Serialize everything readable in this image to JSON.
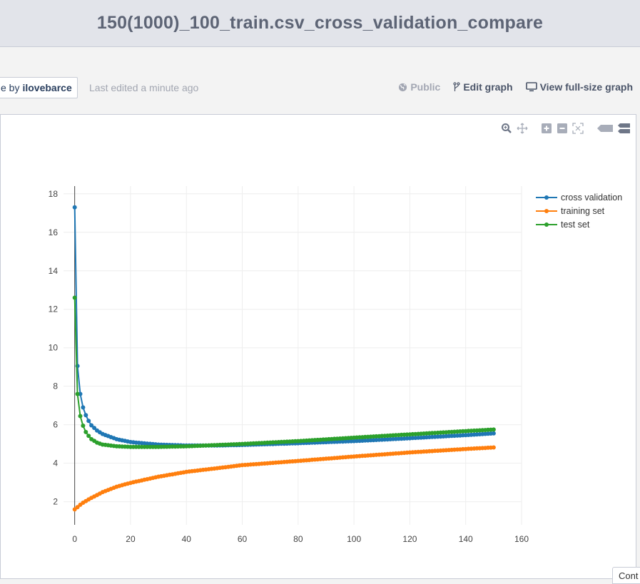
{
  "header": {
    "title": "150(1000)_100_train.csv_cross_validation_compare"
  },
  "toolbar": {
    "owner_prefix": "e by",
    "owner_name": "ilovebarce",
    "last_edited": "Last edited a minute ago",
    "public_label": "Public",
    "edit_label": "Edit graph",
    "view_label": "View full-size graph"
  },
  "modebar": {
    "buttons": [
      "zoom-icon",
      "pan-icon",
      "zoom-in-icon",
      "zoom-out-icon",
      "autoscale-icon",
      "hover-closest-icon",
      "hover-compare-icon"
    ]
  },
  "corner_tab": {
    "label": "Cont"
  },
  "chart_data": {
    "type": "line",
    "xlim": [
      -4,
      160
    ],
    "ylim": [
      0.8,
      18.4
    ],
    "x_ticks": [
      0,
      20,
      40,
      60,
      80,
      100,
      120,
      140,
      160
    ],
    "y_ticks": [
      2,
      4,
      6,
      8,
      10,
      12,
      14,
      16,
      18
    ],
    "grid": true,
    "legend_position": "top-right",
    "x_max": 150,
    "series": [
      {
        "name": "cross validation",
        "color": "#1f77b4",
        "anchors": [
          [
            0,
            17.3
          ],
          [
            1,
            9.05
          ],
          [
            2,
            7.6
          ],
          [
            3,
            6.9
          ],
          [
            4,
            6.5
          ],
          [
            5,
            6.2
          ],
          [
            6,
            5.97
          ],
          [
            8,
            5.7
          ],
          [
            10,
            5.52
          ],
          [
            15,
            5.25
          ],
          [
            20,
            5.1
          ],
          [
            30,
            4.97
          ],
          [
            40,
            4.92
          ],
          [
            50,
            4.92
          ],
          [
            60,
            4.95
          ],
          [
            80,
            5.04
          ],
          [
            100,
            5.15
          ],
          [
            120,
            5.3
          ],
          [
            140,
            5.46
          ],
          [
            150,
            5.55
          ]
        ]
      },
      {
        "name": "training set",
        "color": "#ff7f0e",
        "anchors": [
          [
            0,
            1.6
          ],
          [
            1,
            1.72
          ],
          [
            2,
            1.84
          ],
          [
            3,
            1.95
          ],
          [
            5,
            2.12
          ],
          [
            10,
            2.5
          ],
          [
            15,
            2.78
          ],
          [
            20,
            2.98
          ],
          [
            30,
            3.3
          ],
          [
            40,
            3.55
          ],
          [
            60,
            3.9
          ],
          [
            80,
            4.12
          ],
          [
            100,
            4.35
          ],
          [
            120,
            4.56
          ],
          [
            140,
            4.74
          ],
          [
            150,
            4.82
          ]
        ]
      },
      {
        "name": "test set",
        "color": "#2ca02c",
        "anchors": [
          [
            0,
            12.6
          ],
          [
            1,
            7.6
          ],
          [
            2,
            6.45
          ],
          [
            3,
            5.95
          ],
          [
            4,
            5.62
          ],
          [
            5,
            5.42
          ],
          [
            6,
            5.25
          ],
          [
            8,
            5.07
          ],
          [
            10,
            4.97
          ],
          [
            15,
            4.88
          ],
          [
            20,
            4.85
          ],
          [
            30,
            4.85
          ],
          [
            40,
            4.88
          ],
          [
            60,
            5.0
          ],
          [
            80,
            5.15
          ],
          [
            100,
            5.33
          ],
          [
            120,
            5.5
          ],
          [
            140,
            5.67
          ],
          [
            150,
            5.75
          ]
        ]
      }
    ]
  }
}
